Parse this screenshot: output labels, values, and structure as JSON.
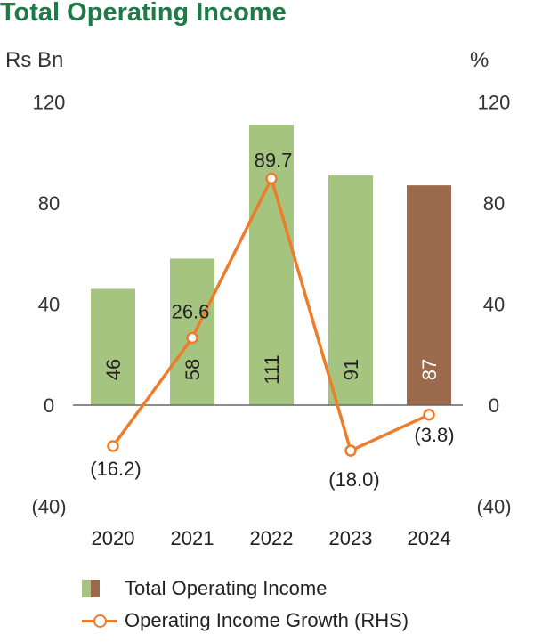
{
  "title": "Total Operating Income",
  "left_unit": "Rs Bn",
  "right_unit": "%",
  "colors": {
    "bar": "#a5c47f",
    "bar_highlight": "#9b6a4c",
    "line": "#ee7d2b",
    "title": "#1e7a46"
  },
  "chart_data": {
    "type": "bar",
    "categories": [
      "2020",
      "2021",
      "2022",
      "2023",
      "2024"
    ],
    "series": [
      {
        "name": "Total Operating Income",
        "axis": "left",
        "values": [
          46,
          58,
          111,
          91,
          87
        ],
        "value_labels": [
          "46",
          "58",
          "111",
          "91",
          "87"
        ],
        "highlight_index": 4
      },
      {
        "name": "Operating Income Growth (RHS)",
        "type": "line",
        "axis": "right",
        "values": [
          -16.2,
          26.6,
          89.7,
          -18.0,
          -3.8
        ],
        "value_labels": [
          "(16.2)",
          "26.6",
          "89.7",
          "(18.0)",
          "(3.8)"
        ]
      }
    ],
    "y_left": {
      "lim": [
        -40,
        120
      ],
      "ticks": [
        "120",
        "80",
        "40",
        "0",
        "(40)"
      ],
      "tick_values": [
        120,
        80,
        40,
        0,
        -40
      ]
    },
    "y_right": {
      "lim": [
        -40,
        120
      ],
      "ticks": [
        "120",
        "80",
        "40",
        "0",
        "(40)"
      ],
      "tick_values": [
        120,
        80,
        40,
        0,
        -40
      ]
    },
    "legend": [
      "Total Operating Income",
      "Operating Income Growth (RHS)"
    ],
    "legend_position": "bottom"
  }
}
